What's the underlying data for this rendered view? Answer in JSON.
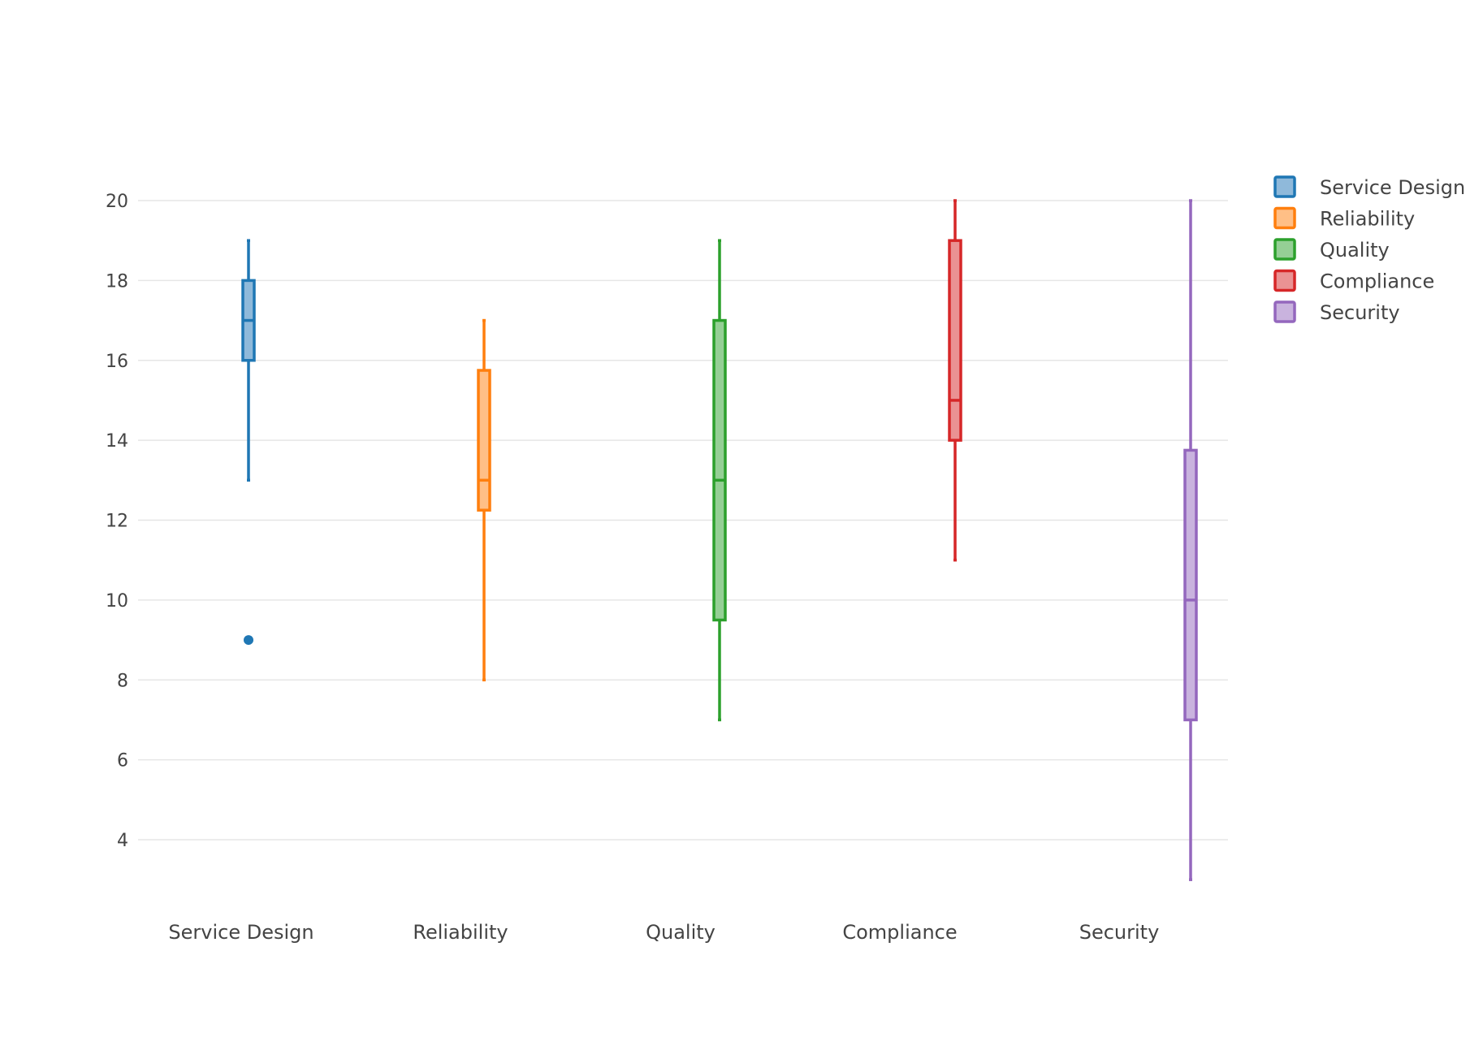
{
  "chart_data": {
    "type": "box",
    "title": "",
    "xlabel": "",
    "ylabel": "",
    "ylim": [
      2.4,
      20.9
    ],
    "y_ticks": [
      4,
      6,
      8,
      10,
      12,
      14,
      16,
      18,
      20
    ],
    "grid": true,
    "legend_position": "right",
    "categories": [
      "Service Design",
      "Reliability",
      "Quality",
      "Compliance",
      "Security"
    ],
    "series": [
      {
        "name": "Service Design",
        "color": "#1f77b4",
        "fill": "#8fb9da",
        "lower_whisker": 13,
        "q1": 16,
        "median": 17,
        "q3": 18,
        "upper_whisker": 19,
        "outliers": [
          9
        ]
      },
      {
        "name": "Reliability",
        "color": "#ff7f0e",
        "fill": "#ffbf86",
        "lower_whisker": 8,
        "q1": 12.25,
        "median": 13,
        "q3": 15.75,
        "upper_whisker": 17,
        "outliers": []
      },
      {
        "name": "Quality",
        "color": "#2ca02c",
        "fill": "#95cf95",
        "lower_whisker": 7,
        "q1": 9.5,
        "median": 13,
        "q3": 17,
        "upper_whisker": 19,
        "outliers": []
      },
      {
        "name": "Compliance",
        "color": "#d62728",
        "fill": "#ea9293",
        "lower_whisker": 11,
        "q1": 14,
        "median": 15,
        "q3": 19,
        "upper_whisker": 20,
        "outliers": []
      },
      {
        "name": "Security",
        "color": "#9467bd",
        "fill": "#c9b3de",
        "lower_whisker": 3,
        "q1": 7,
        "median": 10,
        "q3": 13.75,
        "upper_whisker": 20,
        "outliers": []
      }
    ],
    "legend": [
      "Service Design",
      "Reliability",
      "Quality",
      "Compliance",
      "Security"
    ]
  }
}
